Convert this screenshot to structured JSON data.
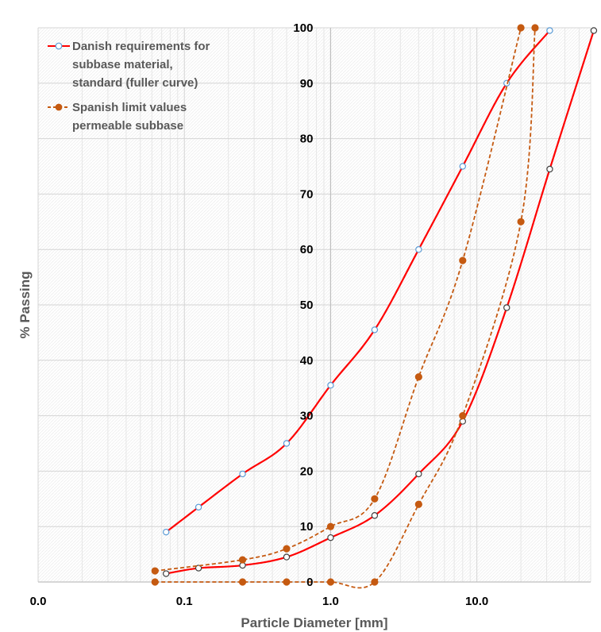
{
  "chart_data": {
    "type": "line",
    "x_scale": "log",
    "xlim": [
      0.01,
      60
    ],
    "ylim": [
      0,
      100
    ],
    "xlabel": "Particle Diameter [mm]",
    "ylabel": "% Passing",
    "x_ticks": [
      {
        "value": 0.01,
        "label": "0.0"
      },
      {
        "value": 0.1,
        "label": "0.1"
      },
      {
        "value": 1,
        "label": "1.0"
      },
      {
        "value": 10,
        "label": "10.0"
      }
    ],
    "y_ticks": [
      {
        "value": 0,
        "label": "0"
      },
      {
        "value": 10,
        "label": "10"
      },
      {
        "value": 20,
        "label": "20"
      },
      {
        "value": 30,
        "label": "30"
      },
      {
        "value": 40,
        "label": "40"
      },
      {
        "value": 50,
        "label": "50"
      },
      {
        "value": 60,
        "label": "60"
      },
      {
        "value": 70,
        "label": "70"
      },
      {
        "value": 80,
        "label": "80"
      },
      {
        "value": 90,
        "label": "90"
      },
      {
        "value": 100,
        "label": "100"
      }
    ],
    "grid": "minor and major log grid, light gray",
    "legend_position": "top-left",
    "legend": [
      {
        "label": "Danish requirements for subbase material, standard (fuller curve)",
        "color": "#ff0000",
        "style": "solid",
        "marker_fill": "#ffffff",
        "marker_stroke": "#5b9bd5"
      },
      {
        "label": "Spanish limit values permeable subbase",
        "color": "#c55a11",
        "style": "dashed",
        "marker_fill": "#c55a11",
        "marker_stroke": "#c55a11"
      }
    ],
    "series": [
      {
        "legend_index": 0,
        "color": "#ff0000",
        "dashed": false,
        "marker_fill": "#ffffff",
        "marker_stroke": "#5b9bd5",
        "points": [
          [
            0.075,
            9
          ],
          [
            0.125,
            13.5
          ],
          [
            0.25,
            19.5
          ],
          [
            0.5,
            25
          ],
          [
            1,
            35.5
          ],
          [
            2,
            45.5
          ],
          [
            4,
            60
          ],
          [
            8,
            75
          ],
          [
            16,
            90
          ],
          [
            31.5,
            99.5
          ]
        ]
      },
      {
        "legend_index": 0,
        "color": "#ff0000",
        "dashed": false,
        "marker_fill": "#ffffff",
        "marker_stroke": "#404040",
        "points": [
          [
            0.075,
            1.5
          ],
          [
            0.125,
            2.5
          ],
          [
            0.25,
            3
          ],
          [
            0.5,
            4.5
          ],
          [
            1,
            8
          ],
          [
            2,
            12
          ],
          [
            4,
            19.5
          ],
          [
            8,
            29
          ],
          [
            16,
            49.5
          ],
          [
            31.5,
            74.5
          ],
          [
            63,
            99.5
          ]
        ]
      },
      {
        "legend_index": 1,
        "color": "#c55a11",
        "dashed": true,
        "marker_fill": "#c55a11",
        "marker_stroke": "#c55a11",
        "points": [
          [
            0.063,
            2
          ],
          [
            0.25,
            4
          ],
          [
            0.5,
            6
          ],
          [
            1,
            10
          ],
          [
            2,
            15
          ],
          [
            4,
            37
          ],
          [
            8,
            58
          ],
          [
            20,
            100
          ]
        ]
      },
      {
        "legend_index": 1,
        "color": "#c55a11",
        "dashed": true,
        "marker_fill": "#c55a11",
        "marker_stroke": "#c55a11",
        "points": [
          [
            0.063,
            0
          ],
          [
            0.25,
            0
          ],
          [
            0.5,
            0
          ],
          [
            1,
            0
          ],
          [
            2,
            0
          ],
          [
            4,
            14
          ],
          [
            8,
            30
          ],
          [
            20,
            65
          ],
          [
            25,
            100
          ]
        ]
      }
    ]
  }
}
